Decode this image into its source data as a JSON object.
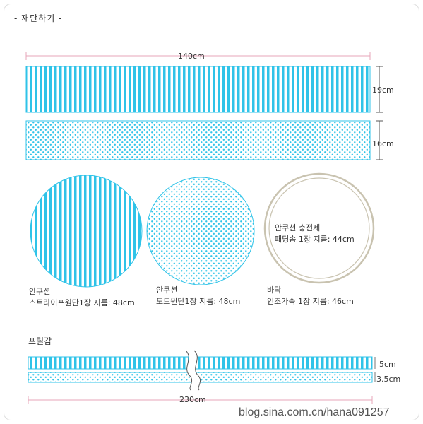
{
  "title": "- 재단하기 -",
  "colors": {
    "stripe": "#2fc3e8",
    "frame": "#dcdcdc",
    "ink": "#333333",
    "ring": "#c9c3b0"
  },
  "panels": {
    "stripe_rect": {
      "width_label": "140cm",
      "height_label": "19cm",
      "pattern": "stripe"
    },
    "dot_rect": {
      "height_label": "16cm",
      "pattern": "dot"
    }
  },
  "circles": [
    {
      "pattern": "stripe",
      "name": "안쿠션",
      "desc": "스트라이프원단1장 지름: 48cm"
    },
    {
      "pattern": "dot",
      "name": "안쿠션",
      "desc": "도트원단1장 지름: 48cm"
    },
    {
      "pattern": "plain",
      "name": "바닥",
      "desc": "인조가죽 1장 지름: 46cm",
      "inner_line1": "안쿠션 충전제",
      "inner_line2": "패딩솜 1장 지름: 44cm"
    }
  ],
  "frill": {
    "heading": "프릴감",
    "stripe_height_label": "5cm",
    "dot_height_label": "3.5cm",
    "length_label": "230cm"
  },
  "watermark": "blog.sina.com.cn/hana091257"
}
